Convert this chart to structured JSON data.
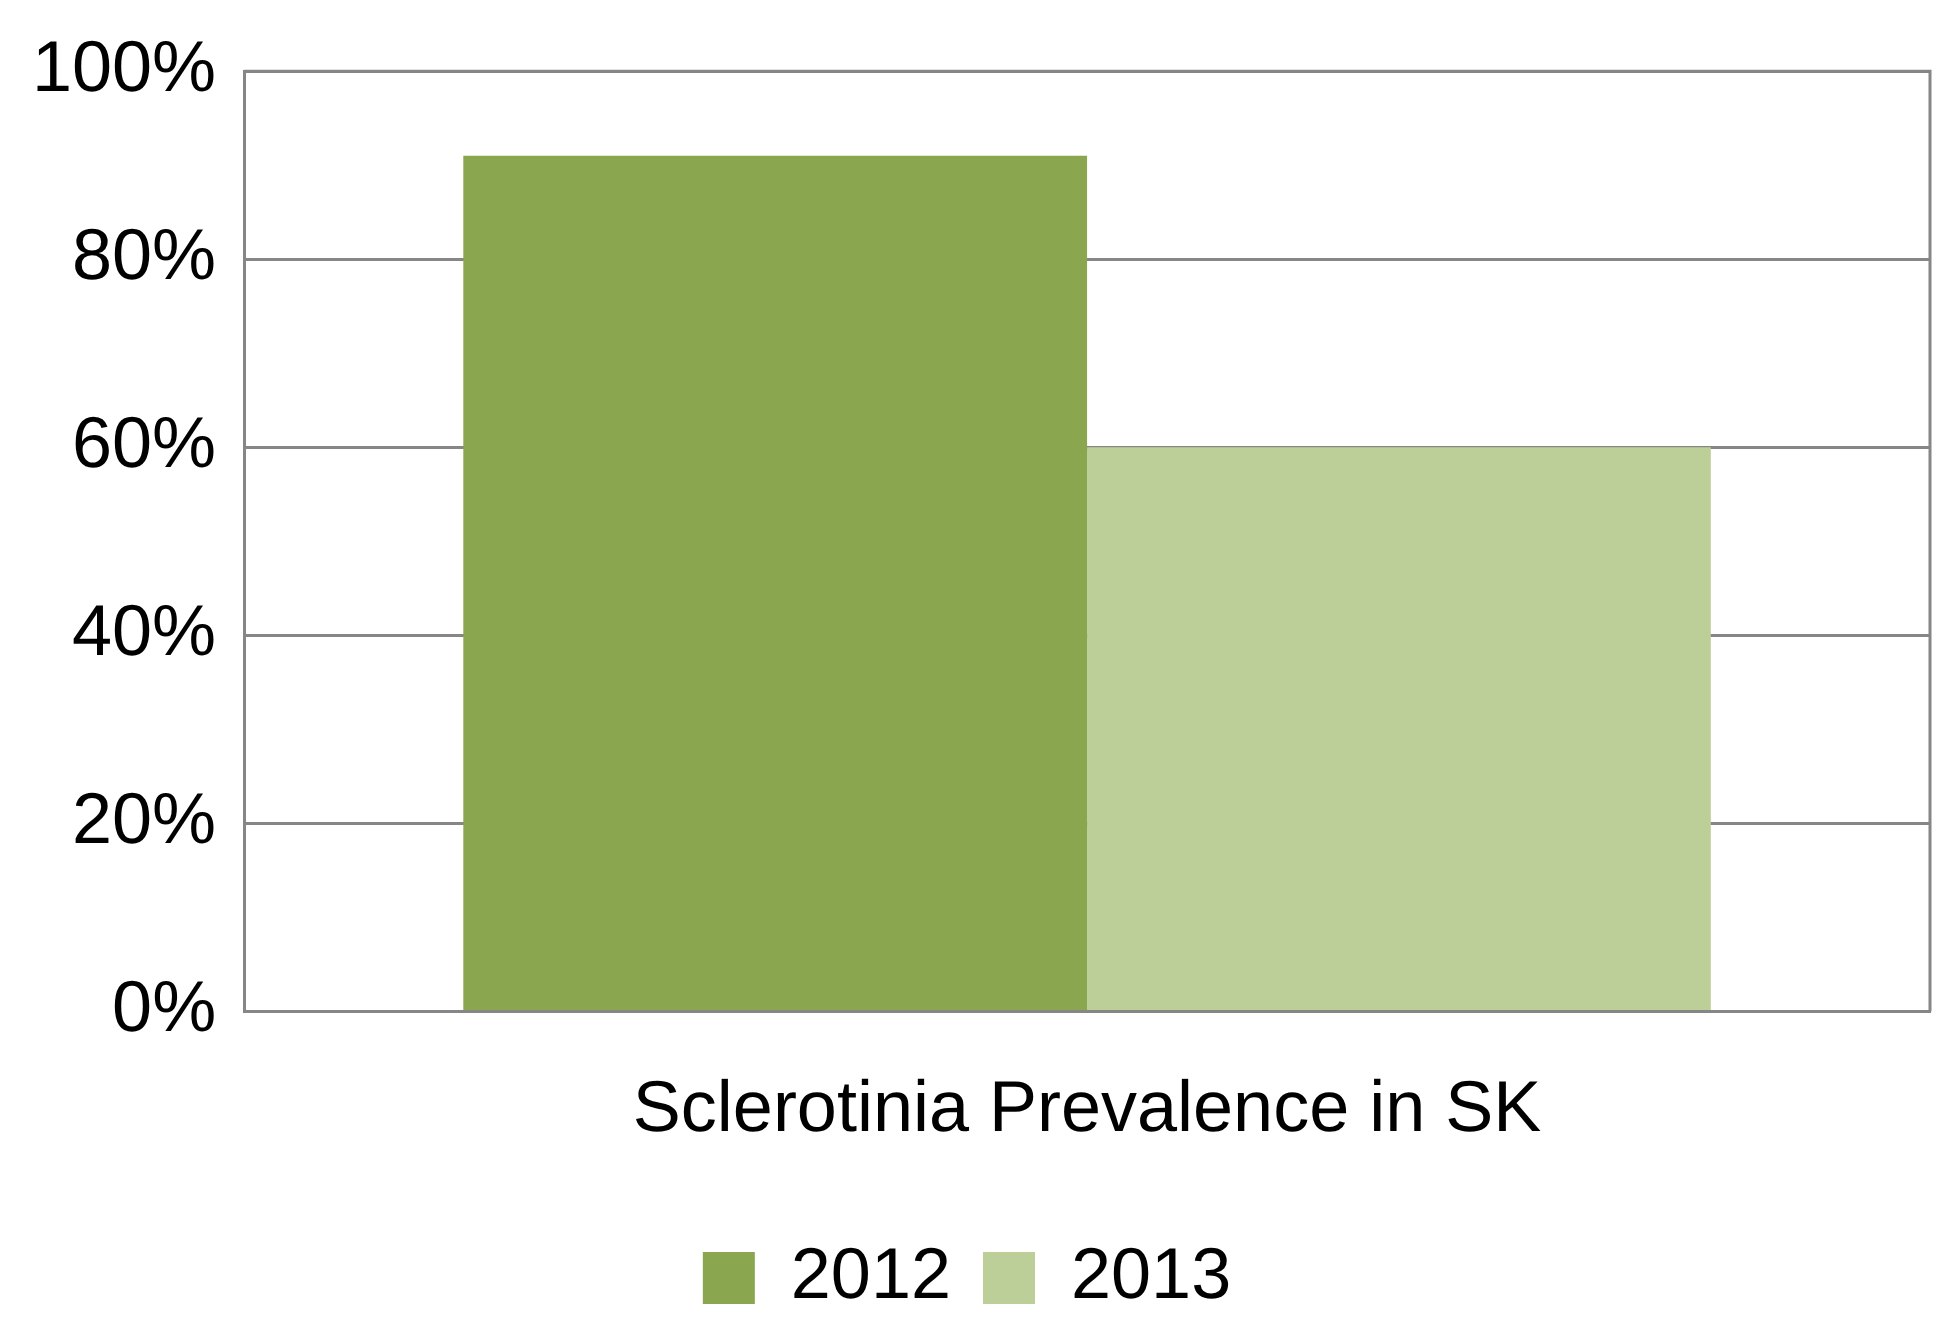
{
  "chart_data": {
    "type": "bar",
    "categories": [
      "Sclerotinia Prevalence in SK"
    ],
    "series": [
      {
        "name": "2012",
        "color": "#8aa64f",
        "values": [
          91
        ]
      },
      {
        "name": "2013",
        "color": "#bccf98",
        "values": [
          60
        ]
      }
    ],
    "ylim": [
      0,
      100
    ],
    "yticks": [
      {
        "value": 0,
        "label": "0%"
      },
      {
        "value": 20,
        "label": "20%"
      },
      {
        "value": 40,
        "label": "40%"
      },
      {
        "value": 60,
        "label": "60%"
      },
      {
        "value": 80,
        "label": "80%"
      },
      {
        "value": 100,
        "label": "100%"
      }
    ],
    "grid": "y",
    "legend": "bottom"
  }
}
